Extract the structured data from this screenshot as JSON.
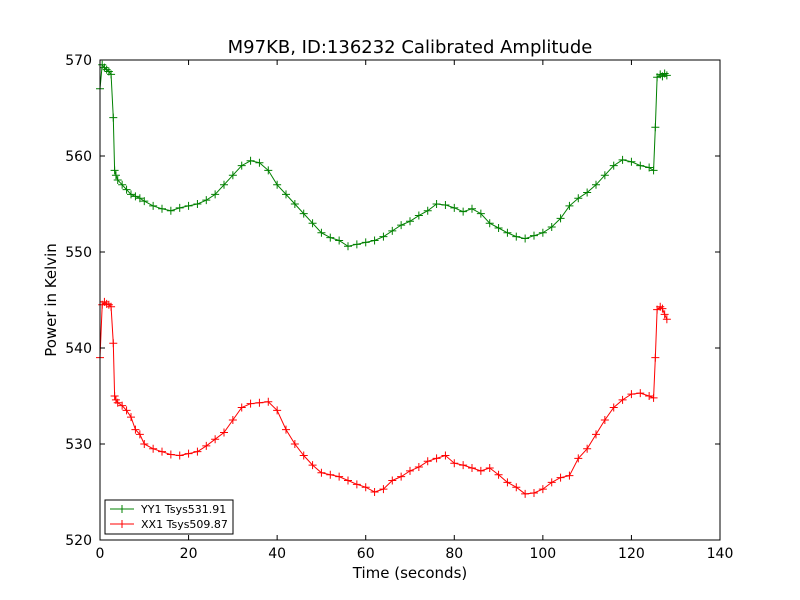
{
  "chart_data": {
    "type": "line",
    "title": "M97KB, ID:136232 Calibrated Amplitude",
    "xlabel": "Time (seconds)",
    "ylabel": "Power in Kelvin",
    "xlim": [
      0,
      140
    ],
    "ylim": [
      520,
      570
    ],
    "xticks": [
      0,
      20,
      40,
      60,
      80,
      100,
      120,
      140
    ],
    "yticks": [
      520,
      530,
      540,
      550,
      560,
      570
    ],
    "grid": false,
    "legend": "lower-left",
    "marker": "+",
    "series": [
      {
        "name": "YY1 Tsys531.91",
        "color": "#008000",
        "x": [
          0,
          0.5,
          1,
          1.5,
          2,
          2.5,
          3,
          3.3,
          3.6,
          4,
          5,
          6,
          7,
          8,
          9,
          10,
          12,
          14,
          16,
          18,
          20,
          22,
          24,
          26,
          28,
          30,
          32,
          34,
          36,
          38,
          40,
          42,
          44,
          46,
          48,
          50,
          52,
          54,
          56,
          58,
          60,
          62,
          64,
          66,
          68,
          70,
          72,
          74,
          76,
          78,
          80,
          82,
          84,
          86,
          88,
          90,
          92,
          94,
          96,
          98,
          100,
          102,
          104,
          106,
          108,
          110,
          112,
          114,
          116,
          118,
          120,
          122,
          124,
          125,
          125.4,
          125.8,
          126.5,
          127,
          127.5,
          128
        ],
        "y": [
          567,
          569.5,
          569.2,
          569,
          568.8,
          568.5,
          564,
          558.5,
          558,
          557.5,
          557,
          556.5,
          556,
          555.8,
          555.6,
          555.3,
          554.8,
          554.5,
          554.3,
          554.6,
          554.8,
          555,
          555.4,
          556,
          557,
          558,
          559,
          559.5,
          559.3,
          558.5,
          557,
          556,
          555,
          554,
          553,
          552,
          551.5,
          551.2,
          550.6,
          550.8,
          551,
          551.2,
          551.6,
          552.2,
          552.8,
          553.2,
          553.8,
          554.3,
          555,
          554.9,
          554.6,
          554.2,
          554.5,
          554,
          553,
          552.5,
          552,
          551.6,
          551.4,
          551.7,
          552,
          552.6,
          553.5,
          554.8,
          555.6,
          556.2,
          557,
          558,
          559,
          559.6,
          559.4,
          559,
          558.8,
          558.5,
          563,
          568.2,
          568.5,
          568.3,
          568.6,
          568.4
        ]
      },
      {
        "name": "XX1 Tsys509.87",
        "color": "#ff0000",
        "x": [
          0,
          0.5,
          1,
          1.5,
          2,
          2.5,
          3,
          3.3,
          3.6,
          4,
          5,
          6,
          7,
          8,
          9,
          10,
          12,
          14,
          16,
          18,
          20,
          22,
          24,
          26,
          28,
          30,
          32,
          34,
          36,
          38,
          40,
          42,
          44,
          46,
          48,
          50,
          52,
          54,
          56,
          58,
          60,
          62,
          64,
          66,
          68,
          70,
          72,
          74,
          76,
          78,
          80,
          82,
          84,
          86,
          88,
          90,
          92,
          94,
          96,
          98,
          100,
          102,
          104,
          106,
          108,
          110,
          112,
          114,
          116,
          118,
          120,
          122,
          124,
          125,
          125.4,
          125.8,
          126.5,
          127,
          127.5,
          128
        ],
        "y": [
          539,
          544.5,
          544.8,
          544.6,
          544.5,
          544.3,
          540.5,
          535,
          534.6,
          534.3,
          534,
          533.5,
          532.8,
          531.5,
          531,
          530,
          529.5,
          529.2,
          528.9,
          528.8,
          529,
          529.2,
          529.8,
          530.5,
          531.2,
          532.5,
          533.8,
          534.2,
          534.3,
          534.4,
          533.5,
          531.5,
          530,
          528.8,
          527.8,
          527,
          526.8,
          526.6,
          526.2,
          525.8,
          525.5,
          525,
          525.3,
          526.2,
          526.6,
          527.2,
          527.6,
          528.2,
          528.5,
          528.8,
          528,
          527.8,
          527.5,
          527.2,
          527.5,
          526.8,
          526,
          525.5,
          524.8,
          524.9,
          525.3,
          526,
          526.5,
          526.7,
          528.5,
          529.5,
          531,
          532.5,
          533.8,
          534.6,
          535.2,
          535.3,
          535,
          534.8,
          539,
          544,
          544.3,
          544.1,
          543.5,
          543
        ]
      }
    ]
  }
}
